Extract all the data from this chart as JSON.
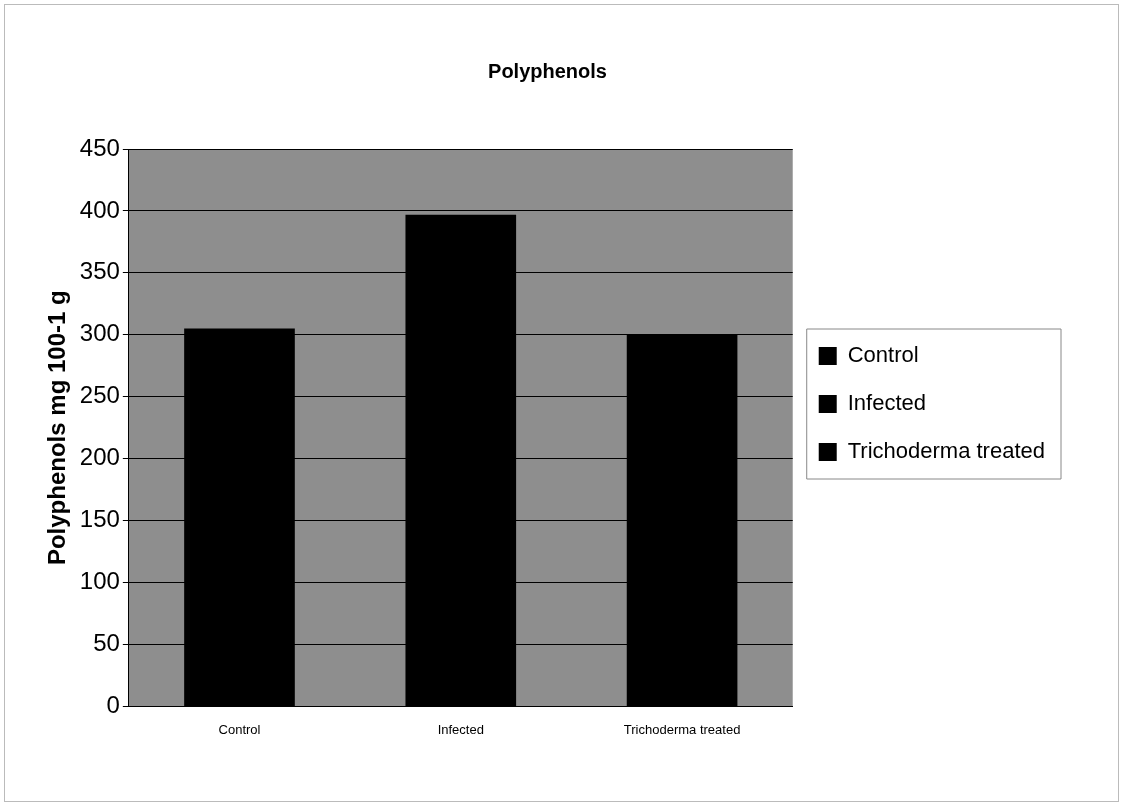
{
  "chart_data": {
    "type": "bar",
    "title": "Polyphenols",
    "ylabel": "Polyphenols mg 100-1 g",
    "categories": [
      "Control",
      "Infected",
      "Trichoderma treated"
    ],
    "series": [
      {
        "name": "Control",
        "color": "#000000",
        "values": [
          305,
          null,
          null
        ]
      },
      {
        "name": "Infected",
        "color": "#000000",
        "values": [
          null,
          397,
          null
        ]
      },
      {
        "name": "Trichoderma treated",
        "color": "#000000",
        "values": [
          null,
          null,
          300
        ]
      }
    ],
    "stacked": true,
    "ylim": [
      0,
      450
    ],
    "yticks": [
      0,
      50,
      100,
      150,
      200,
      250,
      300,
      350,
      400,
      450
    ],
    "grid": "y",
    "legend": "right"
  }
}
